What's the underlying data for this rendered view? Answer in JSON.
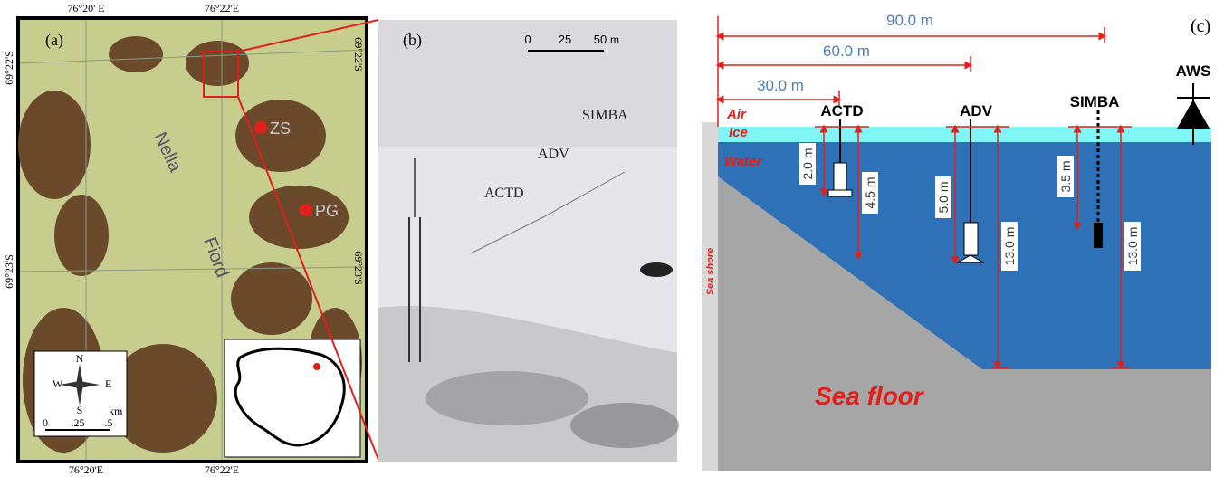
{
  "panel_a": {
    "label": "(a)",
    "top_lon": [
      "76°20' E",
      "76°22'E"
    ],
    "bottom_lon": [
      "76°20'E",
      "76°22'E"
    ],
    "left_lat": [
      "69°22'S",
      "69°23'S"
    ],
    "right_lat": [
      "69°22'S",
      "69°23'S"
    ],
    "places": [
      "Nella",
      "Fiord"
    ],
    "stations": [
      "ZS",
      "PG"
    ],
    "compass": {
      "n": "N",
      "s": "S",
      "e": "E",
      "w": "W"
    },
    "scale": {
      "unit": "km",
      "ticks": [
        "0",
        ".25",
        ".5"
      ]
    }
  },
  "panel_b": {
    "label": "(b)",
    "scale": {
      "ticks": [
        "0",
        "25",
        "50"
      ],
      "unit": "m"
    },
    "instruments": [
      "SIMBA",
      "ADV",
      "ACTD"
    ]
  },
  "panel_c": {
    "label": "(c)",
    "horizontal": [
      "90.0 m",
      "60.0 m",
      "30.0 m"
    ],
    "layers": [
      "Air",
      "Ice",
      "Water"
    ],
    "instruments": [
      "ACTD",
      "ADV",
      "SIMBA",
      "AWS"
    ],
    "depths": [
      "2.0 m",
      "4.5 m",
      "5.0 m",
      "13.0 m",
      "3.5 m",
      "13.0 m"
    ],
    "shore": "Sea shore",
    "floor": "Sea floor"
  }
}
